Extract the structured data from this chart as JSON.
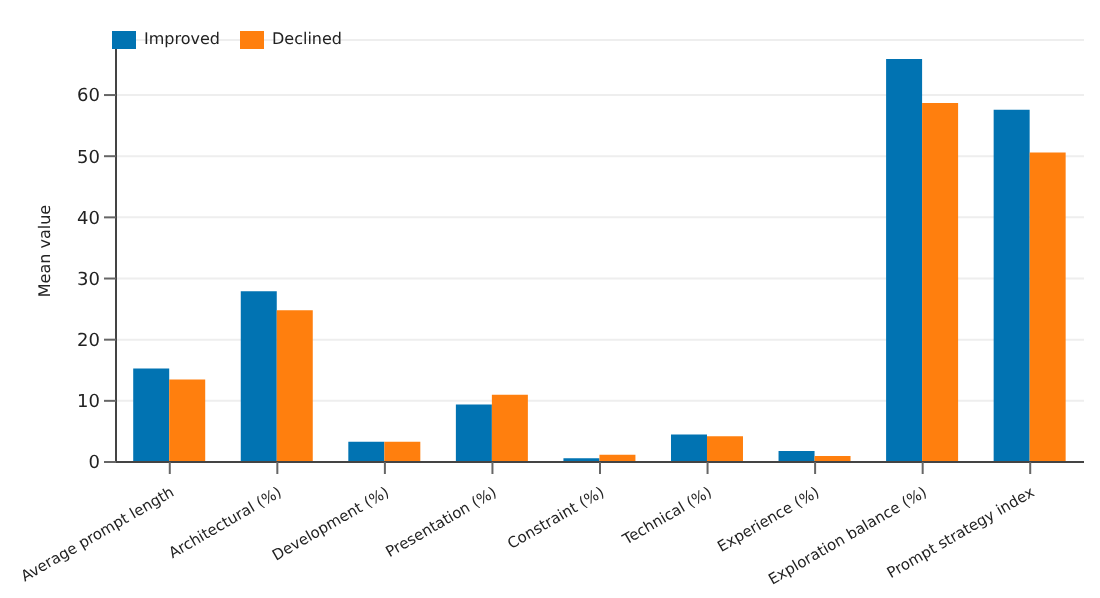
{
  "chart_data": {
    "type": "bar",
    "ylabel": "Mean value",
    "categories": [
      "Average prompt length",
      "Architectural (%)",
      "Development (%)",
      "Presentation (%)",
      "Constraint (%)",
      "Technical (%)",
      "Experience (%)",
      "Exploration balance (%)",
      "Prompt strategy index"
    ],
    "series": [
      {
        "name": "Improved",
        "color": "#0173b2",
        "values": [
          15.3,
          27.9,
          3.3,
          9.4,
          0.6,
          4.5,
          1.8,
          65.9,
          57.6
        ]
      },
      {
        "name": "Declined",
        "color": "#ff7f0e",
        "values": [
          13.5,
          24.8,
          3.3,
          11.0,
          1.2,
          4.2,
          1.0,
          58.7,
          50.6
        ]
      }
    ],
    "ylim": [
      0,
      69
    ],
    "yticks": [
      0,
      10,
      20,
      30,
      40,
      50,
      60
    ],
    "grid": "y",
    "legend": "top left"
  }
}
